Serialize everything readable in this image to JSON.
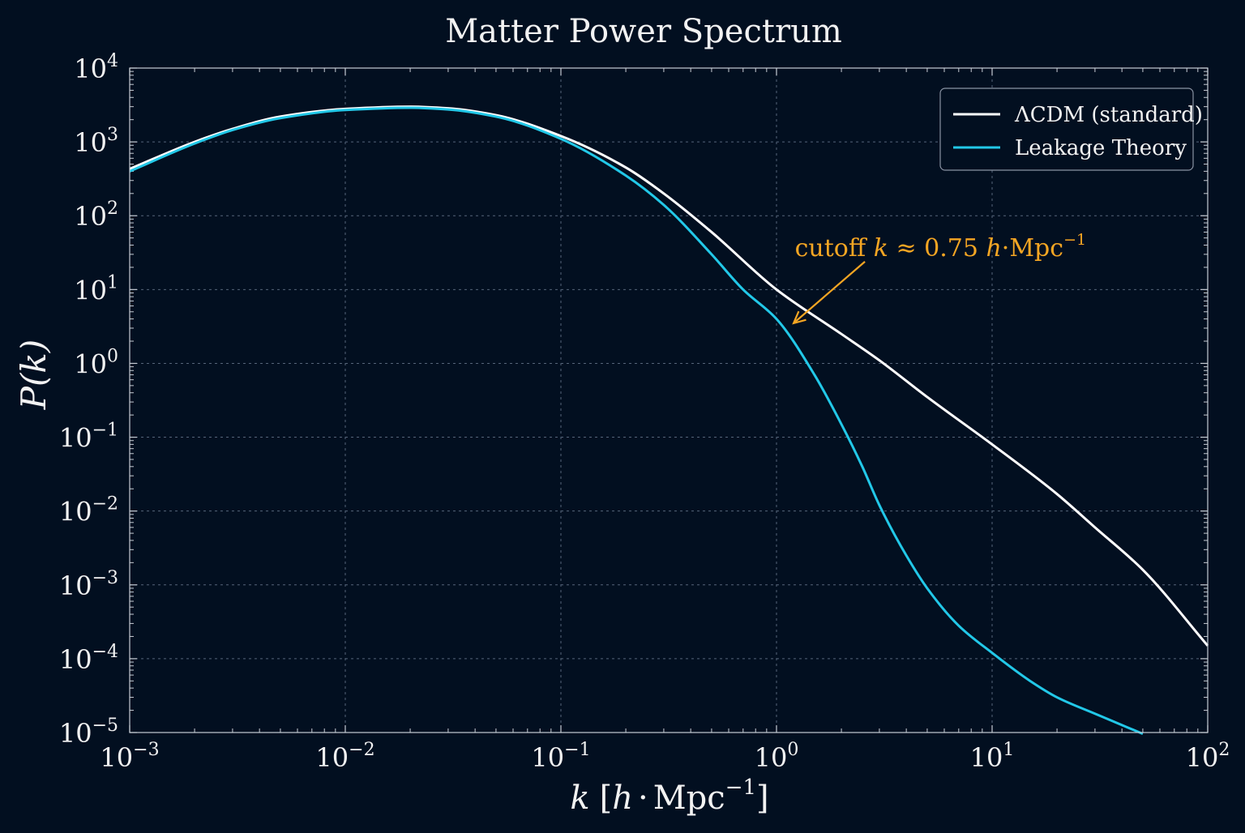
{
  "chart_data": {
    "type": "line",
    "title": "Matter Power Spectrum",
    "xlabel": {
      "var": "k",
      "open": "[",
      "h": "h",
      "dot": "·",
      "unit": "Mpc",
      "exp": "−1",
      "close": "]"
    },
    "ylabel": {
      "text": "P(k)"
    },
    "x_scale": "log",
    "y_scale": "log",
    "xlim": [
      0.001,
      100
    ],
    "ylim": [
      1e-05,
      10000
    ],
    "x_ticks": [
      {
        "value": 0.001,
        "base": "10",
        "exp": "−3"
      },
      {
        "value": 0.01,
        "base": "10",
        "exp": "−2"
      },
      {
        "value": 0.1,
        "base": "10",
        "exp": "−1"
      },
      {
        "value": 1,
        "base": "10",
        "exp": "0"
      },
      {
        "value": 10,
        "base": "10",
        "exp": "1"
      },
      {
        "value": 100,
        "base": "10",
        "exp": "2"
      }
    ],
    "y_ticks": [
      {
        "value": 1e-05,
        "base": "10",
        "exp": "−5"
      },
      {
        "value": 0.0001,
        "base": "10",
        "exp": "−4"
      },
      {
        "value": 0.001,
        "base": "10",
        "exp": "−3"
      },
      {
        "value": 0.01,
        "base": "10",
        "exp": "−2"
      },
      {
        "value": 0.1,
        "base": "10",
        "exp": "−1"
      },
      {
        "value": 1,
        "base": "10",
        "exp": "0"
      },
      {
        "value": 10,
        "base": "10",
        "exp": "1"
      },
      {
        "value": 100,
        "base": "10",
        "exp": "2"
      },
      {
        "value": 1000,
        "base": "10",
        "exp": "3"
      },
      {
        "value": 10000,
        "base": "10",
        "exp": "4"
      }
    ],
    "grid": true,
    "legend_position": "upper-right",
    "series": [
      {
        "name": "ΛCDM (standard)",
        "color": "#ffffff",
        "x": [
          0.001,
          0.002,
          0.003,
          0.005,
          0.01,
          0.02,
          0.03,
          0.05,
          0.1,
          0.2,
          0.3,
          0.5,
          1,
          2,
          3,
          5,
          10,
          20,
          30,
          50,
          100
        ],
        "y": [
          430,
          1000,
          1500,
          2200,
          2800,
          3000,
          2850,
          2300,
          1200,
          450,
          200,
          60,
          10,
          2.5,
          1.1,
          0.35,
          0.08,
          0.017,
          0.006,
          0.0016,
          0.00015
        ]
      },
      {
        "name": "Leakage Theory",
        "color": "#22c8e8",
        "x": [
          0.001,
          0.002,
          0.003,
          0.005,
          0.01,
          0.02,
          0.03,
          0.05,
          0.1,
          0.2,
          0.3,
          0.5,
          0.7,
          1,
          1.5,
          2,
          2.5,
          3,
          4,
          5,
          7,
          10,
          15,
          20,
          30,
          50
        ],
        "y": [
          400,
          950,
          1450,
          2100,
          2700,
          2900,
          2750,
          2200,
          1100,
          350,
          140,
          30,
          10,
          4,
          0.7,
          0.15,
          0.04,
          0.012,
          0.0025,
          0.0009,
          0.00028,
          0.00012,
          5e-05,
          3e-05,
          1.8e-05,
          9.6e-06
        ]
      }
    ],
    "annotation": {
      "text_prefix": "cutoff ",
      "var": "k",
      "approx": " ≈ ",
      "value": "0.75",
      "h": " h",
      "dot": "·",
      "unit": "Mpc",
      "exp": "−1",
      "color": "#f5a623",
      "arrow_to": {
        "x": 1.2,
        "y": 3.5
      },
      "text_at": {
        "x": 1.55,
        "y": 35
      }
    }
  },
  "colors": {
    "background": "#020f20",
    "axes": "#c8ccd4",
    "grid": "#56657a",
    "text": "#f2f2f2"
  }
}
